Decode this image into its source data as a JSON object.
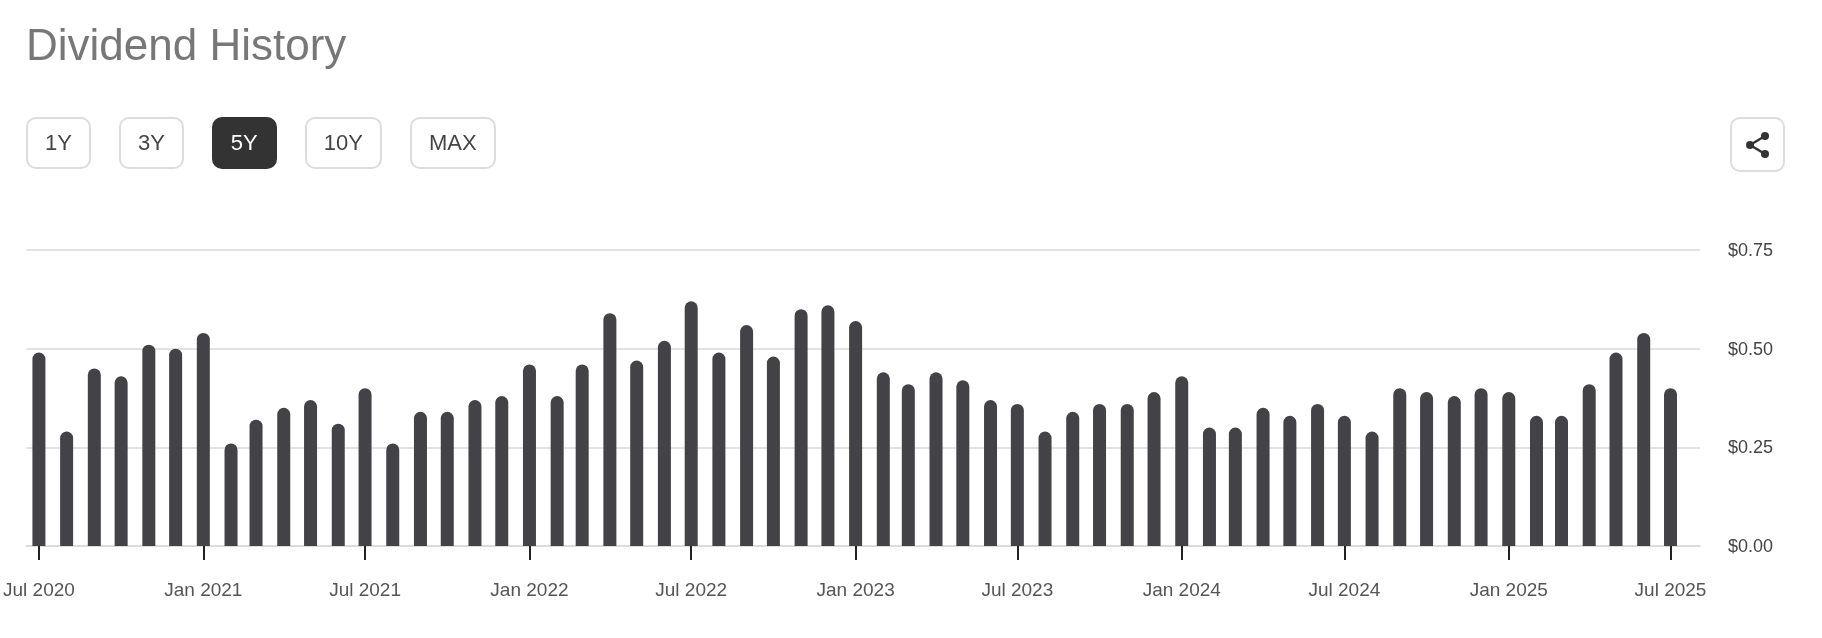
{
  "chart_data": {
    "type": "bar",
    "title": "Dividend History",
    "annotations": [
      "1Y",
      "3Y",
      "5Y",
      "10Y",
      "MAX"
    ],
    "x": [
      "2020-07",
      "2020-08",
      "2020-09",
      "2020-10",
      "2020-11",
      "2020-12",
      "2021-01",
      "2021-02",
      "2021-03",
      "2021-04",
      "2021-05",
      "2021-06",
      "2021-07",
      "2021-08",
      "2021-09",
      "2021-10",
      "2021-11",
      "2021-12",
      "2022-01",
      "2022-02",
      "2022-03",
      "2022-04",
      "2022-05",
      "2022-06",
      "2022-07",
      "2022-08",
      "2022-09",
      "2022-10",
      "2022-11",
      "2022-12",
      "2023-01",
      "2023-02",
      "2023-03",
      "2023-04",
      "2023-05",
      "2023-06",
      "2023-07",
      "2023-08",
      "2023-09",
      "2023-10",
      "2023-11",
      "2023-12",
      "2024-01",
      "2024-02",
      "2024-03",
      "2024-04",
      "2024-05",
      "2024-06",
      "2024-07",
      "2024-08",
      "2024-09",
      "2024-10",
      "2024-11",
      "2024-12",
      "2025-01",
      "2025-02",
      "2025-03",
      "2025-04",
      "2025-05",
      "2025-06",
      "2025-07"
    ],
    "values": [
      0.49,
      0.29,
      0.45,
      0.43,
      0.51,
      0.5,
      0.54,
      0.26,
      0.32,
      0.35,
      0.37,
      0.31,
      0.4,
      0.26,
      0.34,
      0.34,
      0.37,
      0.38,
      0.46,
      0.38,
      0.46,
      0.59,
      0.47,
      0.52,
      0.62,
      0.49,
      0.56,
      0.48,
      0.6,
      0.61,
      0.57,
      0.44,
      0.41,
      0.44,
      0.42,
      0.37,
      0.36,
      0.29,
      0.34,
      0.36,
      0.36,
      0.39,
      0.43,
      0.3,
      0.3,
      0.35,
      0.33,
      0.36,
      0.33,
      0.29,
      0.4,
      0.39,
      0.38,
      0.4,
      0.39,
      0.33,
      0.33,
      0.41,
      0.49,
      0.54,
      0.4
    ],
    "color": "#434247",
    "xlim": [
      "2020-06-17",
      "2025-08-03"
    ],
    "xticks": [
      {
        "value": "2020-07",
        "label": "Jul 2020"
      },
      {
        "value": "2021-01",
        "label": "Jan 2021"
      },
      {
        "value": "2021-07",
        "label": "Jul 2021"
      },
      {
        "value": "2022-01",
        "label": "Jan 2022"
      },
      {
        "value": "2022-07",
        "label": "Jul 2022"
      },
      {
        "value": "2023-01",
        "label": "Jan 2023"
      },
      {
        "value": "2023-07",
        "label": "Jul 2023"
      },
      {
        "value": "2024-01",
        "label": "Jan 2024"
      },
      {
        "value": "2024-07",
        "label": "Jul 2024"
      },
      {
        "value": "2025-01",
        "label": "Jan 2025"
      },
      {
        "value": "2025-07",
        "label": "Jul 2025"
      }
    ],
    "ylim": [
      0,
      0.75
    ],
    "yticks": [
      {
        "value": 0,
        "label": "$0.00"
      },
      {
        "value": 0.25,
        "label": "$0.25"
      },
      {
        "value": 0.5,
        "label": "$0.50"
      },
      {
        "value": 0.75,
        "label": "$0.75"
      }
    ],
    "grid": "y"
  }
}
